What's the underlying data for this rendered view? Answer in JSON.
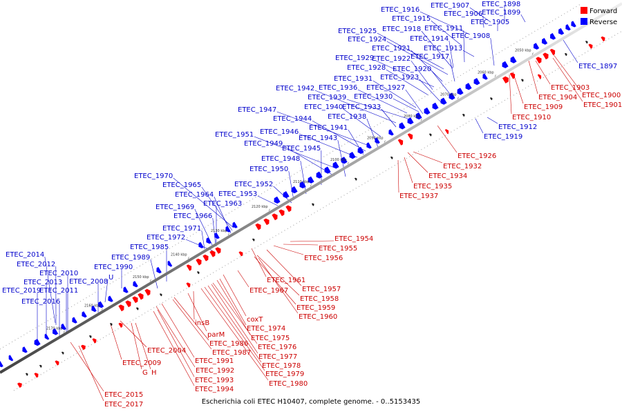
{
  "caption": "Escherichia coli ETEC H10407, complete genome. - 0..5153435",
  "legend": [
    {
      "label": "Forward",
      "color": "#ff0000"
    },
    {
      "label": "Reverse",
      "color": "#0000ff"
    }
  ],
  "colors": {
    "forward": "#ff0000",
    "reverse": "#0000ff",
    "label_forward": "#cc0000",
    "label_reverse": "#0000cc",
    "backbone": "#999999"
  },
  "ticks": [
    "2050 kbp",
    "2060 kbp",
    "2070 kbp",
    "2080 kbp",
    "2090 kbp",
    "2100 kbp",
    "2110 kbp",
    "2120 kbp",
    "2130 kbp",
    "2140 kbp",
    "2150 kbp",
    "2160 kbp",
    "2170 kbp"
  ],
  "reverse_labels": [
    "ETEC_1898",
    "ETEC_1907",
    "ETEC_1899",
    "ETEC_1916",
    "ETEC_1906",
    "ETEC_1915",
    "ETEC_1905",
    "ETEC_1925",
    "ETEC_1918",
    "ETEC_1911",
    "ETEC_1924",
    "ETEC_1914",
    "ETEC_1908",
    "ETEC_1921",
    "ETEC_1913",
    "ETEC_1929",
    "ETEC_1922",
    "ETEC_1917",
    "ETEC_1897",
    "ETEC_1928",
    "ETEC_1920",
    "ETEC_1923",
    "ETEC_1931",
    "ETEC_1942",
    "ETEC_1936",
    "ETEC_1927",
    "ETEC_1939",
    "ETEC_1930",
    "ETEC_1940",
    "ETEC_1933",
    "ETEC_1947",
    "ETEC_1938",
    "ETEC_1944",
    "ETEC_1941",
    "ETEC_1912",
    "ETEC_1946",
    "ETEC_1951",
    "ETEC_1943",
    "ETEC_1919",
    "ETEC_1949",
    "ETEC_1945",
    "ETEC_1948",
    "ETEC_1950",
    "ETEC_1970",
    "ETEC_1965",
    "ETEC_1952",
    "ETEC_1964",
    "ETEC_1953",
    "ETEC_1963",
    "ETEC_1969",
    "ETEC_1966",
    "ETEC_1971",
    "ETEC_1972",
    "ETEC_1985",
    "ETEC_1989",
    "ETEC_2014",
    "ETEC_1990",
    "ETEC_2012",
    "ETEC_2010",
    "U",
    "ETEC_2013",
    "ETEC_2008",
    "ETEC_2019",
    "ETEC_2011",
    "ETEC_2016"
  ],
  "forward_labels": [
    "ETEC_1903",
    "ETEC_1900",
    "ETEC_1904",
    "ETEC_1901",
    "ETEC_1909",
    "ETEC_1910",
    "ETEC_1926",
    "ETEC_1932",
    "ETEC_1934",
    "ETEC_1935",
    "ETEC_1937",
    "ETEC_1954",
    "ETEC_1955",
    "ETEC_1956",
    "ETEC_1961",
    "ETEC_1957",
    "ETEC_1967",
    "ETEC_1958",
    "ETEC_1959",
    "ETEC_1960",
    "coxT",
    "insB",
    "ETEC_1974",
    "parM",
    "ETEC_1975",
    "ETEC_1986",
    "ETEC_1976",
    "ETEC_1987",
    "ETEC_2004",
    "ETEC_1977",
    "ETEC_1991",
    "ETEC_1978",
    "ETEC_2009",
    "ETEC_1992",
    "ETEC_1979",
    "G",
    "H",
    "ETEC_1993",
    "ETEC_1980",
    "ETEC_1994",
    "ETEC_2015",
    "ETEC_2017"
  ]
}
